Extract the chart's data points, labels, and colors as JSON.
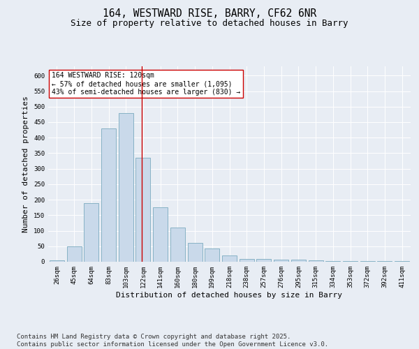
{
  "title_line1": "164, WESTWARD RISE, BARRY, CF62 6NR",
  "title_line2": "Size of property relative to detached houses in Barry",
  "xlabel": "Distribution of detached houses by size in Barry",
  "ylabel": "Number of detached properties",
  "categories": [
    "26sqm",
    "45sqm",
    "64sqm",
    "83sqm",
    "103sqm",
    "122sqm",
    "141sqm",
    "160sqm",
    "180sqm",
    "199sqm",
    "218sqm",
    "238sqm",
    "257sqm",
    "276sqm",
    "295sqm",
    "315sqm",
    "334sqm",
    "353sqm",
    "372sqm",
    "392sqm",
    "411sqm"
  ],
  "values": [
    5,
    50,
    190,
    430,
    480,
    335,
    175,
    110,
    60,
    43,
    20,
    10,
    10,
    7,
    7,
    5,
    3,
    3,
    3,
    3,
    2
  ],
  "bar_color": "#c9d9ea",
  "bar_edge_color": "#7aaabf",
  "vline_x_index": 5,
  "vline_color": "#cc0000",
  "annotation_text": "164 WESTWARD RISE: 120sqm\n← 57% of detached houses are smaller (1,095)\n43% of semi-detached houses are larger (830) →",
  "annotation_box_color": "#ffffff",
  "annotation_box_edge_color": "#cc0000",
  "ylim": [
    0,
    630
  ],
  "yticks": [
    0,
    50,
    100,
    150,
    200,
    250,
    300,
    350,
    400,
    450,
    500,
    550,
    600
  ],
  "background_color": "#e8edf4",
  "plot_bg_color": "#e8edf4",
  "footer_text": "Contains HM Land Registry data © Crown copyright and database right 2025.\nContains public sector information licensed under the Open Government Licence v3.0.",
  "title_fontsize": 10.5,
  "subtitle_fontsize": 9,
  "annotation_fontsize": 7,
  "footer_fontsize": 6.5,
  "axis_label_fontsize": 8,
  "tick_fontsize": 6.5
}
